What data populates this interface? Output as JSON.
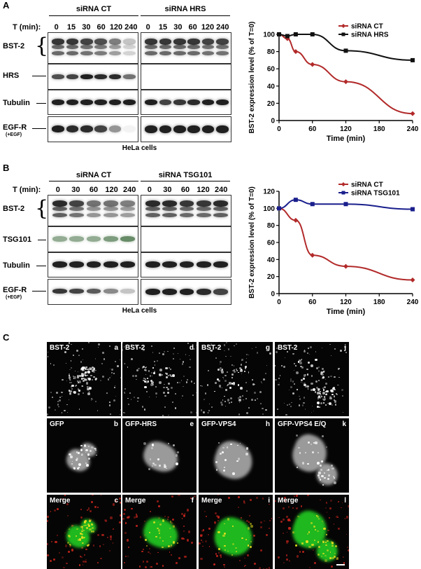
{
  "panels": {
    "A": {
      "label": "A",
      "left_header": "siRNA CT",
      "right_header": "siRNA HRS",
      "time_label": "T (min):",
      "times": [
        "0",
        "15",
        "30",
        "60",
        "120",
        "240"
      ],
      "rows": [
        {
          "label": "BST-2",
          "sub": ""
        },
        {
          "label": "HRS",
          "sub": ""
        },
        {
          "label": "Tubulin",
          "sub": ""
        },
        {
          "label": "EGF-R",
          "sub": "(+EGF)"
        }
      ],
      "cell_label": "HeLa cells"
    },
    "B": {
      "label": "B",
      "left_header": "siRNA CT",
      "right_header": "siRNA TSG101",
      "time_label": "T (min):",
      "times": [
        "0",
        "30",
        "60",
        "120",
        "240"
      ],
      "rows": [
        {
          "label": "BST-2",
          "sub": ""
        },
        {
          "label": "TSG101",
          "sub": ""
        },
        {
          "label": "Tubulin",
          "sub": ""
        },
        {
          "label": "EGF-R",
          "sub": "(+EGF)"
        }
      ],
      "cell_label": "HeLa cells"
    },
    "C": {
      "label": "C",
      "grid": [
        [
          {
            "label": "BST-2",
            "letter": "a"
          },
          {
            "label": "BST-2",
            "letter": "d"
          },
          {
            "label": "BST-2",
            "letter": "g"
          },
          {
            "label": "BST-2",
            "letter": "j"
          }
        ],
        [
          {
            "label": "GFP",
            "letter": "b"
          },
          {
            "label": "GFP-HRS",
            "letter": "e"
          },
          {
            "label": "GFP-VPS4",
            "letter": "h"
          },
          {
            "label": "GFP-VPS4 E/Q",
            "letter": "k"
          }
        ],
        [
          {
            "label": "Merge",
            "letter": "c"
          },
          {
            "label": "Merge",
            "letter": "f"
          },
          {
            "label": "Merge",
            "letter": "i"
          },
          {
            "label": "Merge",
            "letter": "l"
          }
        ]
      ]
    }
  },
  "chart_data": [
    {
      "type": "line",
      "ylabel": "BST-2 expression level (% of T=0)",
      "xlabel": "Time (min)",
      "xlim": [
        0,
        240
      ],
      "ylim": [
        0,
        100
      ],
      "xticks": [
        0,
        60,
        120,
        180,
        240
      ],
      "yticks": [
        0,
        20,
        40,
        60,
        80,
        100
      ],
      "legend_position": "top-right",
      "series": [
        {
          "name": "siRNA CT",
          "color": "#b22a2a",
          "marker": "diamond",
          "x": [
            0,
            15,
            30,
            60,
            120,
            240
          ],
          "y": [
            100,
            95,
            80,
            65,
            45,
            8
          ]
        },
        {
          "name": "siRNA HRS",
          "color": "#111111",
          "marker": "square",
          "x": [
            0,
            15,
            30,
            60,
            120,
            240
          ],
          "y": [
            100,
            98,
            100,
            100,
            81,
            70
          ]
        }
      ]
    },
    {
      "type": "line",
      "ylabel": "BST-2 expression level (% of T=0)",
      "xlabel": "Time (min)",
      "xlim": [
        0,
        240
      ],
      "ylim": [
        0,
        120
      ],
      "xticks": [
        0,
        60,
        120,
        180,
        240
      ],
      "yticks": [
        0,
        20,
        40,
        60,
        80,
        100,
        120
      ],
      "legend_position": "top-right",
      "series": [
        {
          "name": "siRNA CT",
          "color": "#b22a2a",
          "marker": "diamond",
          "x": [
            0,
            30,
            60,
            120,
            240
          ],
          "y": [
            100,
            86,
            45,
            32,
            16
          ]
        },
        {
          "name": "siRNA TSG101",
          "color": "#1a1f8c",
          "marker": "square",
          "x": [
            0,
            30,
            60,
            120,
            240
          ],
          "y": [
            100,
            110,
            105,
            105,
            99
          ]
        }
      ]
    }
  ],
  "scale_bar": {
    "color": "#ffffff"
  }
}
